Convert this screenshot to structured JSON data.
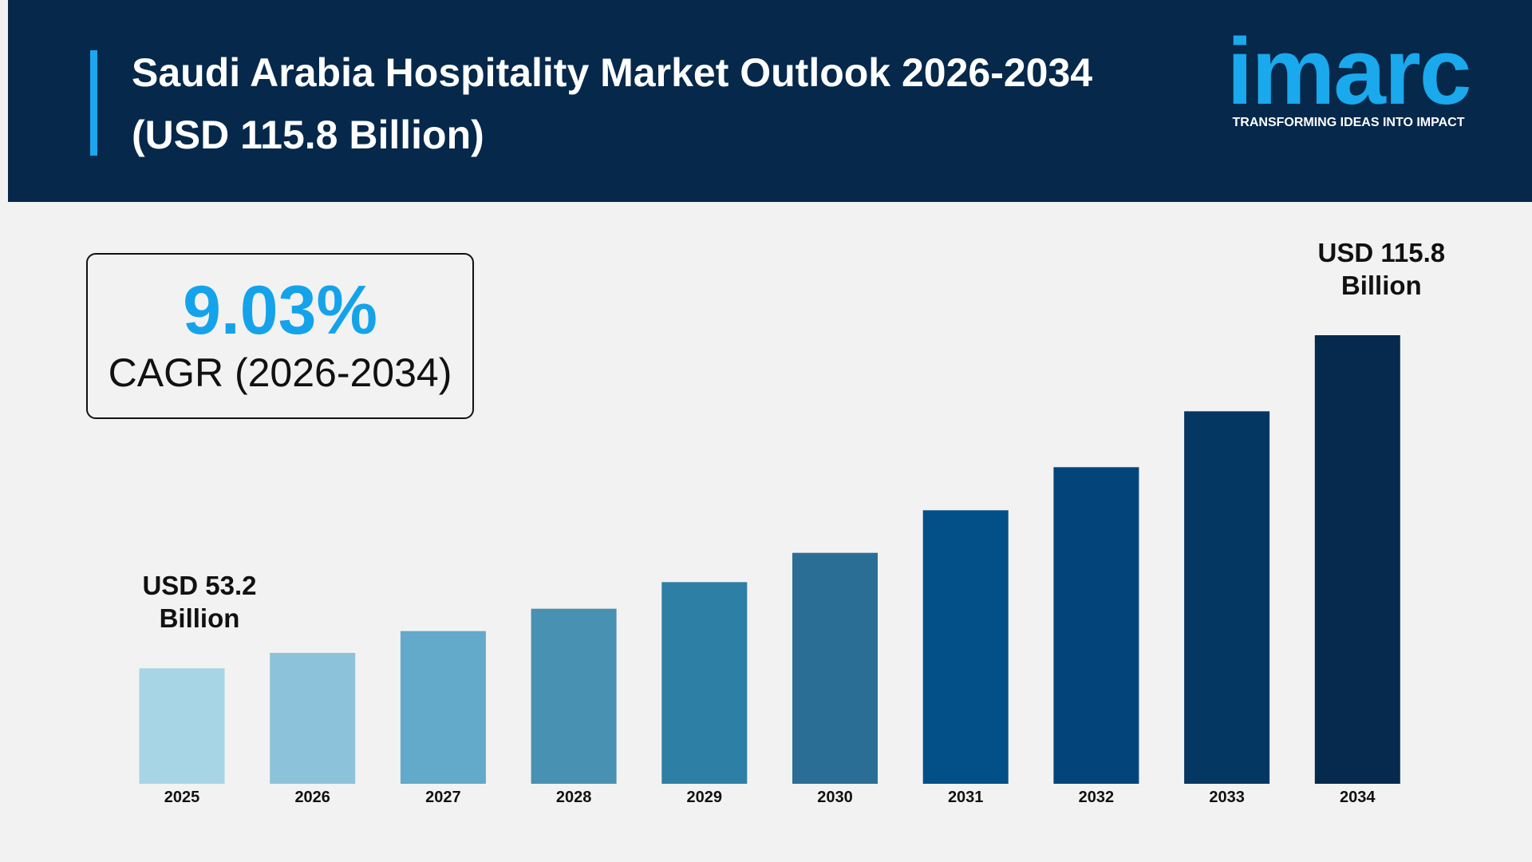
{
  "header": {
    "title": "Saudi Arabia Hospitality Market Outlook 2026-2034 (USD 115.8 Billion)",
    "logo": {
      "name": "imarc",
      "tagline": "TRANSFORMING IDEAS INTO IMPACT"
    }
  },
  "chart_data": {
    "type": "bar",
    "cagr": {
      "value": 9.03,
      "label": "9.03%"
    },
    "cagr_caption": "CAGR (2026-2034)",
    "categories": [
      "2025",
      "2026",
      "2027",
      "2028",
      "2029",
      "2030",
      "2031",
      "2032",
      "2033",
      "2034"
    ],
    "values": [
      53.2,
      56.1,
      60.2,
      64.4,
      69.4,
      74.9,
      82.9,
      91.0,
      101.5,
      115.8
    ],
    "value_labels": [
      "USD 53.2 Billion",
      null,
      null,
      null,
      null,
      null,
      null,
      null,
      null,
      "USD 115.8 Billion"
    ],
    "colors": [
      "#a8d5e6",
      "#8cc3da",
      "#63a9c9",
      "#4891b2",
      "#2e7fa5",
      "#2a6e96",
      "#034f87",
      "#03457a",
      "#043863",
      "#052a4e"
    ],
    "ylim": [
      31.5,
      115.8
    ]
  }
}
